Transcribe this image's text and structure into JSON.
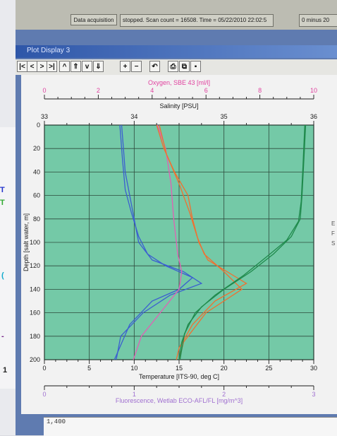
{
  "status_bar": {
    "acquisition_button": "Data acquisition",
    "status_text": "stopped. Scan count = 16508. Time = 05/22/2010 22:02:5",
    "extra_field": "0 minus 20"
  },
  "window": {
    "title": "Plot Display 3",
    "toolbar": [
      {
        "name": "first-button",
        "label": "|<"
      },
      {
        "name": "previous-button",
        "label": "<"
      },
      {
        "name": "next-button",
        "label": ">"
      },
      {
        "name": "last-button",
        "label": ">|"
      },
      {
        "name": "scroll-up-button",
        "label": "^"
      },
      {
        "name": "page-up-button",
        "label": "⇑"
      },
      {
        "name": "scroll-down-button",
        "label": "v"
      },
      {
        "name": "page-down-button",
        "label": "⇓"
      },
      {
        "name": "zoom-in-button",
        "label": "+"
      },
      {
        "name": "zoom-out-button",
        "label": "−"
      },
      {
        "name": "undo-button",
        "label": "↶"
      },
      {
        "name": "print-button",
        "label": "⎙"
      },
      {
        "name": "copy-button",
        "label": "⧉"
      },
      {
        "name": "save-button",
        "label": "▪"
      }
    ]
  },
  "lower_plot": {
    "tick_value": "1,400"
  },
  "colors": {
    "plot_bg": "#74c9a7",
    "grid": "#2d4a3c",
    "oxygen": "#e0429f",
    "salinity": "#1a1a1a",
    "temperature": "#1a1a1a",
    "fluorescence": "#a070d0",
    "series_blue": "#3b5fd0",
    "series_pink": "#e25fb5",
    "series_orange": "#f07030",
    "series_green": "#1f8a4c"
  },
  "chart_data": {
    "type": "line",
    "orientation": "vertical-profile",
    "y_axis": {
      "label": "Depth [salt water, m]",
      "range": [
        0,
        200
      ],
      "inverted": true,
      "ticks": [
        "0",
        "20",
        "40",
        "60",
        "80",
        "100",
        "120",
        "140",
        "160",
        "180",
        "200"
      ]
    },
    "x_axes": [
      {
        "label": "Oxygen, SBE 43 [ml/l]",
        "position": "top-outer",
        "range": [
          0,
          10
        ],
        "ticks": [
          "0",
          "2",
          "4",
          "6",
          "8",
          "10"
        ],
        "color": "#e0429f"
      },
      {
        "label": "Salinity [PSU]",
        "position": "top-inner",
        "range": [
          33,
          36
        ],
        "ticks": [
          "33",
          "34",
          "35",
          "36"
        ]
      },
      {
        "label": "Temperature [ITS-90, deg C]",
        "position": "bottom-inner",
        "range": [
          0,
          30
        ],
        "ticks": [
          "0",
          "5",
          "10",
          "15",
          "20",
          "25",
          "30"
        ]
      },
      {
        "label": "Fluorescence, Wetlab ECO-AFL/FL [mg/m^3]",
        "position": "bottom-outer",
        "range": [
          0,
          3
        ],
        "ticks": [
          "0",
          "1",
          "2",
          "3"
        ],
        "color": "#a070d0"
      }
    ],
    "grid": true,
    "series": [
      {
        "color": "#3b5fd0",
        "axis": 3,
        "points": [
          [
            0.86,
            0
          ],
          [
            0.88,
            20
          ],
          [
            0.9,
            40
          ],
          [
            0.95,
            60
          ],
          [
            1.0,
            80
          ],
          [
            1.05,
            100
          ],
          [
            1.2,
            115
          ],
          [
            1.55,
            125
          ],
          [
            1.75,
            135
          ],
          [
            1.4,
            145
          ],
          [
            1.1,
            160
          ],
          [
            0.85,
            180
          ],
          [
            0.8,
            200
          ]
        ]
      },
      {
        "color": "#3b5fd0",
        "axis": 3,
        "points": [
          [
            0.84,
            0
          ],
          [
            0.87,
            30
          ],
          [
            0.9,
            55
          ],
          [
            0.97,
            75
          ],
          [
            1.05,
            95
          ],
          [
            1.15,
            110
          ],
          [
            1.35,
            120
          ],
          [
            1.65,
            130
          ],
          [
            1.5,
            140
          ],
          [
            1.2,
            150
          ],
          [
            0.95,
            170
          ],
          [
            0.78,
            200
          ]
        ]
      },
      {
        "color": "#e25fb5",
        "axis": 0,
        "points": [
          [
            4.2,
            0
          ],
          [
            4.5,
            20
          ],
          [
            4.7,
            50
          ],
          [
            4.8,
            80
          ],
          [
            4.95,
            110
          ],
          [
            5.1,
            125
          ],
          [
            5.0,
            140
          ],
          [
            4.3,
            160
          ],
          [
            3.6,
            180
          ],
          [
            3.3,
            200
          ]
        ]
      },
      {
        "color": "#f07030",
        "axis": 1,
        "points": [
          [
            34.25,
            0
          ],
          [
            34.33,
            20
          ],
          [
            34.45,
            40
          ],
          [
            34.6,
            60
          ],
          [
            34.65,
            80
          ],
          [
            34.72,
            100
          ],
          [
            34.82,
            115
          ],
          [
            35.1,
            128
          ],
          [
            35.25,
            135
          ],
          [
            34.9,
            150
          ],
          [
            34.65,
            170
          ],
          [
            34.5,
            190
          ],
          [
            34.47,
            200
          ]
        ]
      },
      {
        "color": "#f07030",
        "axis": 1,
        "points": [
          [
            34.28,
            0
          ],
          [
            34.36,
            25
          ],
          [
            34.5,
            50
          ],
          [
            34.62,
            75
          ],
          [
            34.7,
            95
          ],
          [
            34.78,
            110
          ],
          [
            35.0,
            125
          ],
          [
            35.2,
            140
          ],
          [
            34.8,
            160
          ],
          [
            34.55,
            185
          ],
          [
            34.5,
            200
          ]
        ]
      },
      {
        "color": "#1f8a4c",
        "axis": 2,
        "points": [
          [
            29.1,
            0
          ],
          [
            28.9,
            30
          ],
          [
            28.7,
            60
          ],
          [
            28.5,
            80
          ],
          [
            27.5,
            95
          ],
          [
            25.5,
            110
          ],
          [
            23.0,
            125
          ],
          [
            20.0,
            140
          ],
          [
            17.5,
            155
          ],
          [
            16.0,
            170
          ],
          [
            15.3,
            185
          ],
          [
            15.0,
            200
          ]
        ]
      },
      {
        "color": "#1f8a4c",
        "axis": 2,
        "points": [
          [
            29.0,
            0
          ],
          [
            28.8,
            35
          ],
          [
            28.6,
            65
          ],
          [
            28.3,
            82
          ],
          [
            27.0,
            98
          ],
          [
            24.8,
            112
          ],
          [
            22.2,
            128
          ],
          [
            19.0,
            145
          ],
          [
            16.8,
            160
          ],
          [
            15.6,
            178
          ],
          [
            15.1,
            200
          ]
        ]
      }
    ]
  }
}
